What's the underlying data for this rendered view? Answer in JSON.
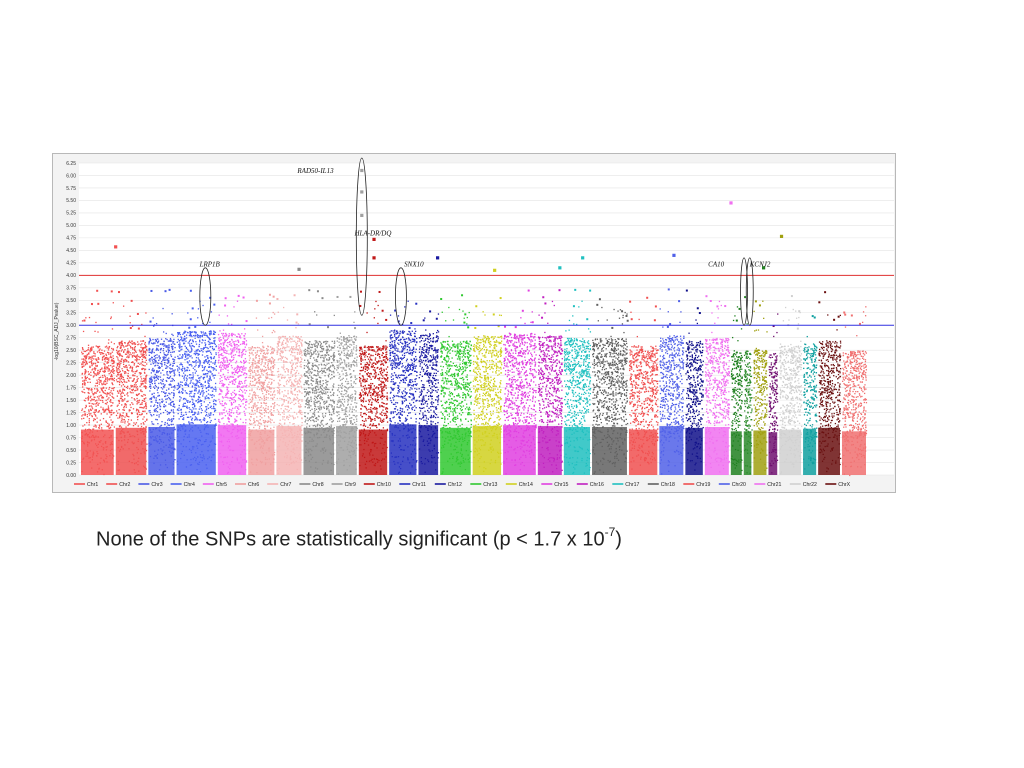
{
  "chart_data": {
    "type": "scatter",
    "title": "",
    "xlabel": "",
    "ylabel": "-log10(BSC_ADJ_Pvalue)",
    "ylim": [
      0,
      6.25
    ],
    "ytick_step": 0.25,
    "grid": true,
    "legend_position": "bottom",
    "chromosomes": [
      {
        "name": "Chr1",
        "color": "#f25252",
        "peak": 2.6,
        "len": 30
      },
      {
        "name": "Chr2",
        "color": "#ef5050",
        "peak": 2.7,
        "len": 28
      },
      {
        "name": "Chr3",
        "color": "#4a5ae6",
        "peak": 2.75,
        "len": 24
      },
      {
        "name": "Chr4",
        "color": "#4a60f0",
        "peak": 2.9,
        "len": 36
      },
      {
        "name": "Chr5",
        "color": "#f060f0",
        "peak": 2.85,
        "len": 26
      },
      {
        "name": "Chr6",
        "color": "#f0a0a0",
        "peak": 2.6,
        "len": 24
      },
      {
        "name": "Chr7",
        "color": "#f4b4b4",
        "peak": 2.8,
        "len": 23
      },
      {
        "name": "Chr8",
        "color": "#8a8a8a",
        "peak": 2.7,
        "len": 28
      },
      {
        "name": "Chr9",
        "color": "#a0a0a0",
        "peak": 2.8,
        "len": 19
      },
      {
        "name": "Chr10",
        "color": "#c01818",
        "peak": 2.6,
        "len": 26
      },
      {
        "name": "Chr11",
        "color": "#2630c0",
        "peak": 2.9,
        "len": 25
      },
      {
        "name": "Chr12",
        "color": "#1a1aa0",
        "peak": 2.85,
        "len": 18
      },
      {
        "name": "Chr13",
        "color": "#30c830",
        "peak": 2.7,
        "len": 28
      },
      {
        "name": "Chr14",
        "color": "#d0d020",
        "peak": 2.8,
        "len": 26
      },
      {
        "name": "Chr15",
        "color": "#e040e0",
        "peak": 2.85,
        "len": 30
      },
      {
        "name": "Chr16",
        "color": "#c020c0",
        "peak": 2.8,
        "len": 22
      },
      {
        "name": "Chr17",
        "color": "#20c0c0",
        "peak": 2.75,
        "len": 24
      },
      {
        "name": "Chr18",
        "color": "#606060",
        "peak": 2.75,
        "len": 32
      },
      {
        "name": "Chr19",
        "color": "#f05050",
        "peak": 2.6,
        "len": 26
      },
      {
        "name": "Chr20",
        "color": "#5060e8",
        "peak": 2.8,
        "len": 22
      },
      {
        "name": "Chr21",
        "color": "#f070f0",
        "peak": 2.75,
        "len": 22
      },
      {
        "name": "Chr22",
        "color": "#d0d0d0",
        "peak": 2.6,
        "len": 20
      },
      {
        "name": "ChrX",
        "color": "#6a1010",
        "peak": 2.7,
        "len": 20
      }
    ],
    "extra_bands": [
      {
        "color": "#10108a",
        "peak": 2.7,
        "len": 16
      },
      {
        "color": "#208020",
        "peak": 2.5,
        "len": 10
      },
      {
        "color": "#2a8a2a",
        "peak": 2.5,
        "len": 7
      },
      {
        "color": "#a0a010",
        "peak": 2.55,
        "len": 12
      },
      {
        "color": "#701070",
        "peak": 2.45,
        "len": 8
      },
      {
        "color": "#10a0a0",
        "peak": 2.65,
        "len": 12
      },
      {
        "color": "#f07070",
        "peak": 2.5,
        "len": 22
      }
    ],
    "thresholds": [
      {
        "value": 4.0,
        "color": "#e03030"
      },
      {
        "value": 3.0,
        "color": "#3030e0"
      }
    ],
    "annotations": [
      {
        "label": "LRP1B",
        "x": 0.148,
        "y": 4.18
      },
      {
        "label": "RAD50-IL13",
        "x": 0.268,
        "y": 6.05
      },
      {
        "label": "HLA-DR/DQ",
        "x": 0.338,
        "y": 4.8
      },
      {
        "label": "SNX10",
        "x": 0.399,
        "y": 4.18
      },
      {
        "label": "CA10",
        "x": 0.772,
        "y": 4.18
      },
      {
        "label": "KCNJ2",
        "x": 0.823,
        "y": 4.18
      }
    ],
    "highlight_regions": [
      {
        "x": 0.155,
        "ymin": 3.0,
        "ymax": 4.15
      },
      {
        "x": 0.347,
        "ymin": 3.2,
        "ymax": 6.35
      },
      {
        "x": 0.395,
        "ymin": 3.0,
        "ymax": 4.15
      },
      {
        "x": 0.816,
        "ymin": 3.0,
        "ymax": 4.35
      },
      {
        "x": 0.823,
        "ymin": 3.0,
        "ymax": 4.35
      }
    ],
    "top_points": [
      {
        "x": 0.045,
        "y": 4.57,
        "color": "#f25252"
      },
      {
        "x": 0.27,
        "y": 4.12,
        "color": "#8a8a8a"
      },
      {
        "x": 0.347,
        "y": 6.1,
        "color": "#a0a0a0"
      },
      {
        "x": 0.347,
        "y": 5.67,
        "color": "#a0a0a0"
      },
      {
        "x": 0.347,
        "y": 5.2,
        "color": "#a0a0a0"
      },
      {
        "x": 0.362,
        "y": 4.72,
        "color": "#c01818"
      },
      {
        "x": 0.362,
        "y": 4.35,
        "color": "#c01818"
      },
      {
        "x": 0.44,
        "y": 4.35,
        "color": "#1a1aa0"
      },
      {
        "x": 0.51,
        "y": 4.1,
        "color": "#d0d020"
      },
      {
        "x": 0.59,
        "y": 4.15,
        "color": "#20c0c0"
      },
      {
        "x": 0.618,
        "y": 4.35,
        "color": "#20c0c0"
      },
      {
        "x": 0.73,
        "y": 4.4,
        "color": "#5060e8"
      },
      {
        "x": 0.8,
        "y": 5.45,
        "color": "#f070f0"
      },
      {
        "x": 0.84,
        "y": 4.15,
        "color": "#208020"
      },
      {
        "x": 0.862,
        "y": 4.78,
        "color": "#a0a010"
      }
    ]
  },
  "caption": {
    "main": "None of the SNPs are statistically significant (p < 1.7 x 10",
    "sup": "-7",
    "end": ")"
  }
}
